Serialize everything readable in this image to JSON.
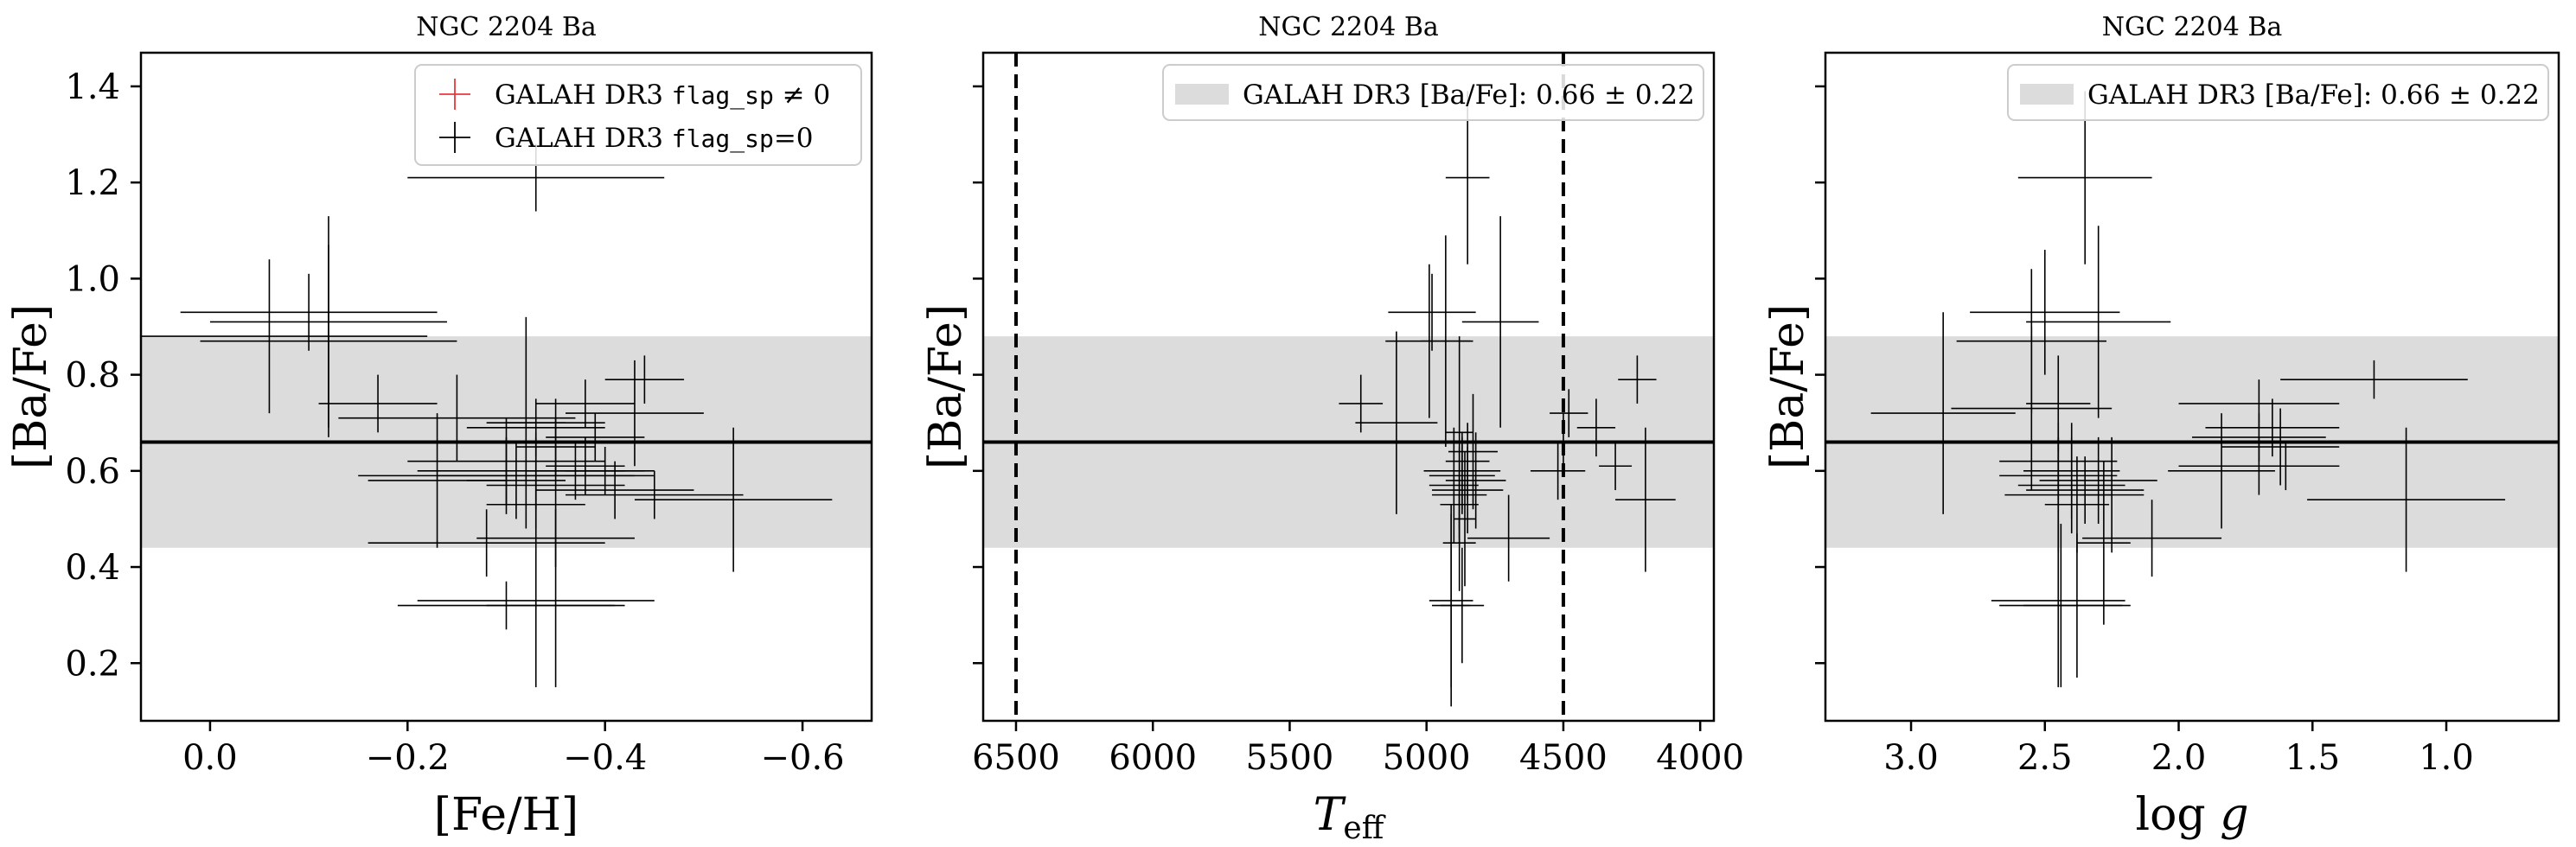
{
  "figure": {
    "colors": {
      "band": "#dcdcdc",
      "points": "#000000",
      "flagged": "#e8383a",
      "mean_line": "#000000"
    }
  },
  "chart_data": [
    {
      "type": "scatter",
      "title": "NGC 2204 Ba",
      "xlabel": "[Fe/H]",
      "ylabel": "[Ba/Fe]",
      "xlim": [
        0.07,
        -0.67
      ],
      "ylim": [
        0.08,
        1.47
      ],
      "x_inverted": true,
      "xticks": [
        0.0,
        -0.2,
        -0.4,
        -0.6
      ],
      "xtick_labels": [
        "0.0",
        "−0.2",
        "−0.4",
        "−0.6"
      ],
      "yticks": [
        0.2,
        0.4,
        0.6,
        0.8,
        1.0,
        1.2,
        1.4
      ],
      "ytick_labels": [
        "0.2",
        "0.4",
        "0.6",
        "0.8",
        "1.0",
        "1.2",
        "1.4"
      ],
      "show_ytick_labels": true,
      "legend": {
        "position": "top-right",
        "entries": [
          {
            "label_pre": "GALAH DR3 ",
            "label_code": "flag_sp",
            "label_post": " ≠ 0",
            "style": "flagged"
          },
          {
            "label_pre": "GALAH DR3 ",
            "label_code": "flag_sp",
            "label_post": "=0",
            "style": "normal"
          }
        ]
      },
      "band": {
        "center": 0.66,
        "err": 0.22
      },
      "mean_line": 0.66,
      "points": [
        {
          "x": -0.33,
          "y": 1.21,
          "xerr": 0.13,
          "yerr": 0.07
        },
        {
          "x": -0.1,
          "y": 0.93,
          "xerr": 0.13,
          "yerr": 0.08
        },
        {
          "x": -0.12,
          "y": 0.91,
          "xerr": 0.12,
          "yerr": 0.22
        },
        {
          "x": -0.06,
          "y": 0.88,
          "xerr": 0.16,
          "yerr": 0.16
        },
        {
          "x": -0.12,
          "y": 0.87,
          "xerr": 0.13,
          "yerr": 0.2
        },
        {
          "x": -0.44,
          "y": 0.79,
          "xerr": 0.04,
          "yerr": 0.05
        },
        {
          "x": -0.17,
          "y": 0.74,
          "xerr": 0.06,
          "yerr": 0.06
        },
        {
          "x": -0.38,
          "y": 0.74,
          "xerr": 0.05,
          "yerr": 0.05
        },
        {
          "x": -0.43,
          "y": 0.72,
          "xerr": 0.07,
          "yerr": 0.11
        },
        {
          "x": -0.25,
          "y": 0.71,
          "xerr": 0.12,
          "yerr": 0.09
        },
        {
          "x": -0.35,
          "y": 0.7,
          "xerr": 0.05,
          "yerr": 0.05
        },
        {
          "x": -0.33,
          "y": 0.69,
          "xerr": 0.07,
          "yerr": 0.06
        },
        {
          "x": -0.39,
          "y": 0.67,
          "xerr": 0.05,
          "yerr": 0.05
        },
        {
          "x": -0.35,
          "y": 0.65,
          "xerr": 0.04,
          "yerr": 0.06
        },
        {
          "x": -0.38,
          "y": 0.61,
          "xerr": 0.04,
          "yerr": 0.06
        },
        {
          "x": -0.3,
          "y": 0.62,
          "xerr": 0.1,
          "yerr": 0.09
        },
        {
          "x": -0.33,
          "y": 0.6,
          "xerr": 0.12,
          "yerr": 0.08
        },
        {
          "x": -0.4,
          "y": 0.6,
          "xerr": 0.04,
          "yerr": 0.05
        },
        {
          "x": -0.37,
          "y": 0.6,
          "xerr": 0.05,
          "yerr": 0.06
        },
        {
          "x": -0.33,
          "y": 0.59,
          "xerr": 0.1,
          "yerr": 0.08
        },
        {
          "x": -0.3,
          "y": 0.59,
          "xerr": 0.15,
          "yerr": 0.08
        },
        {
          "x": -0.31,
          "y": 0.58,
          "xerr": 0.05,
          "yerr": 0.08
        },
        {
          "x": -0.35,
          "y": 0.57,
          "xerr": 0.07,
          "yerr": 0.08
        },
        {
          "x": -0.41,
          "y": 0.56,
          "xerr": 0.08,
          "yerr": 0.06
        },
        {
          "x": -0.45,
          "y": 0.55,
          "xerr": 0.09,
          "yerr": 0.05
        },
        {
          "x": -0.53,
          "y": 0.54,
          "xerr": 0.1,
          "yerr": 0.15
        },
        {
          "x": -0.33,
          "y": 0.53,
          "xerr": 0.05,
          "yerr": 0.05
        },
        {
          "x": -0.35,
          "y": 0.46,
          "xerr": 0.08,
          "yerr": 0.06
        },
        {
          "x": -0.28,
          "y": 0.45,
          "xerr": 0.12,
          "yerr": 0.07
        },
        {
          "x": -0.33,
          "y": 0.33,
          "xerr": 0.12,
          "yerr": 0.18
        },
        {
          "x": -0.3,
          "y": 0.32,
          "xerr": 0.11,
          "yerr": 0.05
        },
        {
          "x": -0.35,
          "y": 0.32,
          "xerr": 0.07,
          "yerr": 0.17
        },
        {
          "x": -0.32,
          "y": 0.7,
          "xerr": 0.04,
          "yerr": 0.22
        },
        {
          "x": -0.23,
          "y": 0.58,
          "xerr": 0.07,
          "yerr": 0.14
        }
      ]
    },
    {
      "type": "scatter",
      "title": "NGC 2204 Ba",
      "xlabel": "T_eff",
      "ylabel": "[Ba/Fe]",
      "xlim": [
        6620,
        3950
      ],
      "ylim": [
        0.08,
        1.47
      ],
      "x_inverted": true,
      "xticks": [
        6500,
        6000,
        5500,
        5000,
        4500,
        4000
      ],
      "xtick_labels": [
        "6500",
        "6000",
        "5500",
        "5000",
        "4500",
        "4000"
      ],
      "yticks": [
        0.2,
        0.4,
        0.6,
        0.8,
        1.0,
        1.2,
        1.4
      ],
      "ytick_labels": [
        "0.2",
        "0.4",
        "0.6",
        "0.8",
        "1.0",
        "1.2",
        "1.4"
      ],
      "show_ytick_labels": false,
      "vlines": [
        6500,
        4500
      ],
      "legend": {
        "position": "top-right",
        "entries": [
          {
            "label_pre": "GALAH DR3 [Ba/Fe]: ",
            "label_code": "",
            "label_post": "0.66 ± 0.22",
            "style": "band"
          }
        ]
      },
      "band": {
        "center": 0.66,
        "err": 0.22
      },
      "mean_line": 0.66,
      "points": [
        {
          "x": 4850,
          "y": 1.21,
          "xerr": 80,
          "yerr": 0.18
        },
        {
          "x": 4980,
          "y": 0.93,
          "xerr": 160,
          "yerr": 0.08
        },
        {
          "x": 4730,
          "y": 0.91,
          "xerr": 140,
          "yerr": 0.22
        },
        {
          "x": 4990,
          "y": 0.87,
          "xerr": 160,
          "yerr": 0.16
        },
        {
          "x": 4930,
          "y": 0.87,
          "xerr": 90,
          "yerr": 0.22
        },
        {
          "x": 4230,
          "y": 0.79,
          "xerr": 70,
          "yerr": 0.05
        },
        {
          "x": 5240,
          "y": 0.74,
          "xerr": 80,
          "yerr": 0.06
        },
        {
          "x": 4480,
          "y": 0.72,
          "xerr": 70,
          "yerr": 0.05
        },
        {
          "x": 5110,
          "y": 0.7,
          "xerr": 150,
          "yerr": 0.19
        },
        {
          "x": 4380,
          "y": 0.69,
          "xerr": 70,
          "yerr": 0.06
        },
        {
          "x": 4880,
          "y": 0.68,
          "xerr": 50,
          "yerr": 0.2
        },
        {
          "x": 4500,
          "y": 0.66,
          "xerr": 30,
          "yerr": 0.06
        },
        {
          "x": 4830,
          "y": 0.64,
          "xerr": 90,
          "yerr": 0.12
        },
        {
          "x": 4850,
          "y": 0.62,
          "xerr": 80,
          "yerr": 0.08
        },
        {
          "x": 4520,
          "y": 0.6,
          "xerr": 100,
          "yerr": 0.06
        },
        {
          "x": 4310,
          "y": 0.61,
          "xerr": 60,
          "yerr": 0.05
        },
        {
          "x": 4870,
          "y": 0.6,
          "xerr": 140,
          "yerr": 0.08
        },
        {
          "x": 4870,
          "y": 0.59,
          "xerr": 120,
          "yerr": 0.08
        },
        {
          "x": 4820,
          "y": 0.58,
          "xerr": 110,
          "yerr": 0.1
        },
        {
          "x": 4900,
          "y": 0.57,
          "xerr": 90,
          "yerr": 0.12
        },
        {
          "x": 4850,
          "y": 0.56,
          "xerr": 130,
          "yerr": 0.09
        },
        {
          "x": 4880,
          "y": 0.55,
          "xerr": 100,
          "yerr": 0.1
        },
        {
          "x": 4200,
          "y": 0.54,
          "xerr": 110,
          "yerr": 0.15
        },
        {
          "x": 4880,
          "y": 0.53,
          "xerr": 70,
          "yerr": 0.07
        },
        {
          "x": 4700,
          "y": 0.46,
          "xerr": 150,
          "yerr": 0.09
        },
        {
          "x": 4880,
          "y": 0.45,
          "xerr": 60,
          "yerr": 0.1
        },
        {
          "x": 4910,
          "y": 0.33,
          "xerr": 80,
          "yerr": 0.18
        },
        {
          "x": 4910,
          "y": 0.32,
          "xerr": 70,
          "yerr": 0.21
        },
        {
          "x": 4870,
          "y": 0.32,
          "xerr": 80,
          "yerr": 0.12
        },
        {
          "x": 4860,
          "y": 0.5,
          "xerr": 40,
          "yerr": 0.14
        }
      ]
    },
    {
      "type": "scatter",
      "title": "NGC 2204 Ba",
      "xlabel": "log g",
      "ylabel": "[Ba/Fe]",
      "xlim": [
        3.32,
        0.58
      ],
      "ylim": [
        0.08,
        1.47
      ],
      "x_inverted": true,
      "xticks": [
        3.0,
        2.5,
        2.0,
        1.5,
        1.0
      ],
      "xtick_labels": [
        "3.0",
        "2.5",
        "2.0",
        "1.5",
        "1.0"
      ],
      "yticks": [
        0.2,
        0.4,
        0.6,
        0.8,
        1.0,
        1.2,
        1.4
      ],
      "ytick_labels": [
        "0.2",
        "0.4",
        "0.6",
        "0.8",
        "1.0",
        "1.2",
        "1.4"
      ],
      "show_ytick_labels": false,
      "legend": {
        "position": "top-right",
        "entries": [
          {
            "label_pre": "GALAH DR3 [Ba/Fe]: ",
            "label_code": "",
            "label_post": "0.66 ± 0.22",
            "style": "band"
          }
        ]
      },
      "band": {
        "center": 0.66,
        "err": 0.22
      },
      "mean_line": 0.66,
      "points": [
        {
          "x": 2.35,
          "y": 1.21,
          "xerr": 0.25,
          "yerr": 0.18
        },
        {
          "x": 2.5,
          "y": 0.93,
          "xerr": 0.28,
          "yerr": 0.13
        },
        {
          "x": 2.3,
          "y": 0.91,
          "xerr": 0.27,
          "yerr": 0.2
        },
        {
          "x": 2.55,
          "y": 0.87,
          "xerr": 0.28,
          "yerr": 0.15
        },
        {
          "x": 1.27,
          "y": 0.79,
          "xerr": 0.35,
          "yerr": 0.04
        },
        {
          "x": 2.45,
          "y": 0.74,
          "xerr": 0.12,
          "yerr": 0.1
        },
        {
          "x": 1.7,
          "y": 0.74,
          "xerr": 0.3,
          "yerr": 0.05
        },
        {
          "x": 2.55,
          "y": 0.73,
          "xerr": 0.3,
          "yerr": 0.17
        },
        {
          "x": 2.88,
          "y": 0.72,
          "xerr": 0.27,
          "yerr": 0.21
        },
        {
          "x": 1.65,
          "y": 0.69,
          "xerr": 0.25,
          "yerr": 0.06
        },
        {
          "x": 1.7,
          "y": 0.67,
          "xerr": 0.25,
          "yerr": 0.05
        },
        {
          "x": 1.62,
          "y": 0.65,
          "xerr": 0.22,
          "yerr": 0.08
        },
        {
          "x": 2.45,
          "y": 0.62,
          "xerr": 0.22,
          "yerr": 0.08
        },
        {
          "x": 1.7,
          "y": 0.61,
          "xerr": 0.3,
          "yerr": 0.06
        },
        {
          "x": 1.6,
          "y": 0.61,
          "xerr": 0.2,
          "yerr": 0.05
        },
        {
          "x": 1.84,
          "y": 0.6,
          "xerr": 0.2,
          "yerr": 0.12
        },
        {
          "x": 2.4,
          "y": 0.6,
          "xerr": 0.18,
          "yerr": 0.1
        },
        {
          "x": 2.45,
          "y": 0.59,
          "xerr": 0.22,
          "yerr": 0.08
        },
        {
          "x": 2.3,
          "y": 0.58,
          "xerr": 0.22,
          "yerr": 0.09
        },
        {
          "x": 2.4,
          "y": 0.57,
          "xerr": 0.2,
          "yerr": 0.1
        },
        {
          "x": 2.35,
          "y": 0.56,
          "xerr": 0.22,
          "yerr": 0.07
        },
        {
          "x": 2.45,
          "y": 0.55,
          "xerr": 0.2,
          "yerr": 0.12
        },
        {
          "x": 1.15,
          "y": 0.54,
          "xerr": 0.37,
          "yerr": 0.15
        },
        {
          "x": 2.38,
          "y": 0.53,
          "xerr": 0.12,
          "yerr": 0.1
        },
        {
          "x": 2.1,
          "y": 0.46,
          "xerr": 0.26,
          "yerr": 0.08
        },
        {
          "x": 2.28,
          "y": 0.45,
          "xerr": 0.1,
          "yerr": 0.17
        },
        {
          "x": 2.45,
          "y": 0.33,
          "xerr": 0.25,
          "yerr": 0.18
        },
        {
          "x": 2.44,
          "y": 0.32,
          "xerr": 0.23,
          "yerr": 0.17
        },
        {
          "x": 2.38,
          "y": 0.32,
          "xerr": 0.2,
          "yerr": 0.15
        },
        {
          "x": 2.25,
          "y": 0.55,
          "xerr": 0.12,
          "yerr": 0.12
        }
      ]
    }
  ]
}
